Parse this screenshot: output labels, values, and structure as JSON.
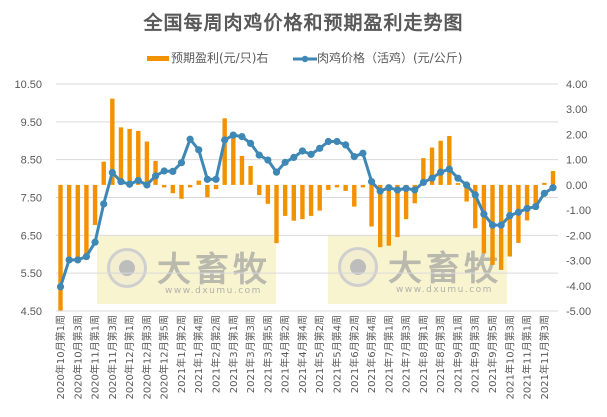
{
  "chart_data": {
    "type": "bar+line",
    "title": "全国每周肉鸡价格和预期盈利走势图",
    "legend_position": "top",
    "grid": true,
    "series": [
      {
        "name": "预期盈利(元/只)右",
        "type": "bar",
        "axis": "right",
        "color": "#F39200",
        "values": [
          -4.98,
          -2.97,
          -2.97,
          -2.97,
          -1.59,
          0.92,
          3.42,
          2.28,
          2.22,
          2.14,
          1.72,
          0.95,
          -0.1,
          -0.33,
          -0.55,
          -0.1,
          0.17,
          -0.49,
          -0.17,
          2.64,
          1.88,
          1.15,
          0.75,
          -0.4,
          -0.75,
          -2.31,
          -1.23,
          -1.42,
          -1.36,
          -1.23,
          -1.02,
          -0.2,
          -0.1,
          -0.24,
          -0.86,
          -0.1,
          -1.65,
          -2.47,
          -2.41,
          -2.07,
          -1.36,
          -0.73,
          1.06,
          1.48,
          1.75,
          1.94,
          0.07,
          -0.66,
          -1.72,
          -2.71,
          -3.17,
          -3.37,
          -2.84,
          -2.3,
          -1.41,
          -0.99,
          0.0,
          0.55
        ]
      },
      {
        "name": "肉鸡价格（活鸡）(元/公斤)",
        "type": "line",
        "axis": "left",
        "color": "#3F88B5",
        "values": [
          5.14,
          5.85,
          5.85,
          5.94,
          6.32,
          7.33,
          8.16,
          7.92,
          7.85,
          7.95,
          7.83,
          8.07,
          8.2,
          8.19,
          8.42,
          9.04,
          8.76,
          7.98,
          7.98,
          9.02,
          9.15,
          9.11,
          8.93,
          8.62,
          8.49,
          8.17,
          8.43,
          8.56,
          8.73,
          8.64,
          8.8,
          8.98,
          8.98,
          8.89,
          8.58,
          8.67,
          7.92,
          7.67,
          7.76,
          7.7,
          7.74,
          7.7,
          7.9,
          8.01,
          8.17,
          8.25,
          8.01,
          7.83,
          7.57,
          7.06,
          6.77,
          6.77,
          7.02,
          7.11,
          7.21,
          7.26,
          7.61,
          7.76
        ]
      }
    ],
    "x_tick_labels": [
      "2020年10月第1周",
      "2020年10月第3周",
      "2020年11月第1周",
      "2020年11月第3周",
      "2020年12月第1周",
      "2020年12月第3周",
      "2020年12月第5周",
      "2021年1月第2周",
      "2021年1月第4周",
      "2021年2月第2周",
      "2021年3月第1周",
      "2021年3月第3周",
      "2021年3月第5周",
      "2021年4月第2周",
      "2021年4月第4周",
      "2021年5月第2周",
      "2021年5月第4周",
      "2021年6月第2周",
      "2021年6月第4周",
      "2021年7月第1周",
      "2021年7月第3周",
      "2021年8月第1周",
      "2021年8月第3周",
      "2021年9月第1周",
      "2021年9月第3周",
      "2021年9月第5周",
      "2021年10月第3周",
      "2021年11月第1周",
      "2021年11月第3周"
    ],
    "x_tick_every": 2,
    "left_axis": {
      "label": "",
      "ylim": [
        4.5,
        10.5
      ],
      "ticks": [
        "10.50",
        "9.50",
        "8.50",
        "7.50",
        "6.50",
        "5.50",
        "4.50"
      ]
    },
    "right_axis": {
      "label": "",
      "ylim": [
        -5.0,
        4.0
      ],
      "ticks": [
        "4.00",
        "3.00",
        "2.00",
        "1.00",
        "0.00",
        "-1.00",
        "-2.00",
        "-3.00",
        "-4.00",
        "-5.00"
      ]
    },
    "xlabel": "",
    "ylabel": ""
  },
  "watermark": {
    "brand": "大畜牧",
    "url": "www.dxumu.com"
  },
  "legend": {
    "bar_label": "预期盈利(元/只)右",
    "line_label": "肉鸡价格（活鸡）(元/公斤)"
  }
}
